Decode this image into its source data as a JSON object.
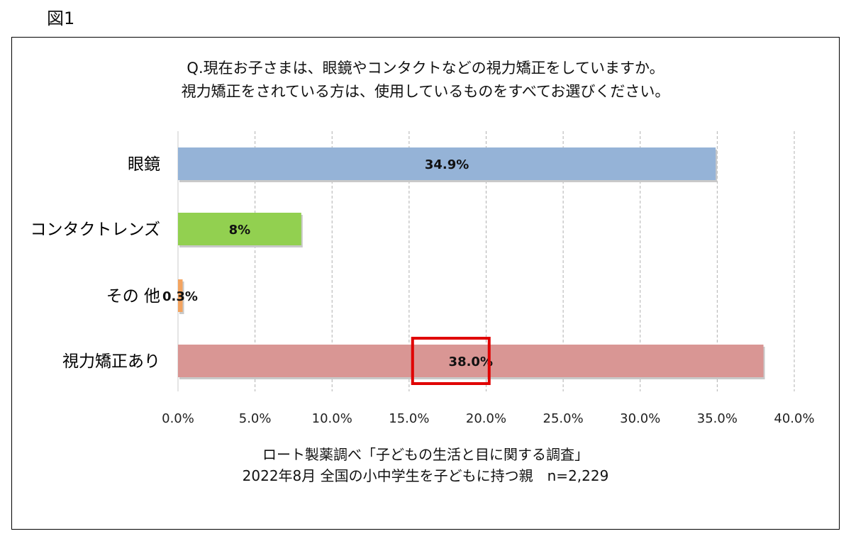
{
  "figure_label": "図1",
  "question": {
    "line1": "Q.現在お子さまは、眼鏡やコンタクトなどの視力矯正をしていますか。",
    "line2": "視力矯正をされている方は、使用しているものをすべてお選びください。"
  },
  "source": {
    "line1": "ロート製薬調べ「子どもの生活と目に関する調査」",
    "line2": "2022年8月 全国の小中学生を子どもに持つ親　n=2,229"
  },
  "chart_data": {
    "type": "bar",
    "orientation": "horizontal",
    "categories": [
      "眼鏡",
      "コンタクトレンズ",
      "その 他",
      "視力矯正あり"
    ],
    "values": [
      34.9,
      8,
      0.3,
      38.0
    ],
    "data_labels": [
      "34.9%",
      "8%",
      "0.3%",
      "38.0%"
    ],
    "colors": [
      "#95b3d7",
      "#92d050",
      "#f4a460",
      "#d99694"
    ],
    "xlim": [
      0,
      40
    ],
    "x_ticks": [
      "0.0%",
      "5.0%",
      "10.0%",
      "15.0%",
      "20.0%",
      "25.0%",
      "30.0%",
      "35.0%",
      "40.0%"
    ],
    "grid": "vertical dashed",
    "highlight": {
      "category": "視力矯正あり",
      "color": "#e00000"
    },
    "title": "",
    "xlabel": "",
    "ylabel": ""
  }
}
